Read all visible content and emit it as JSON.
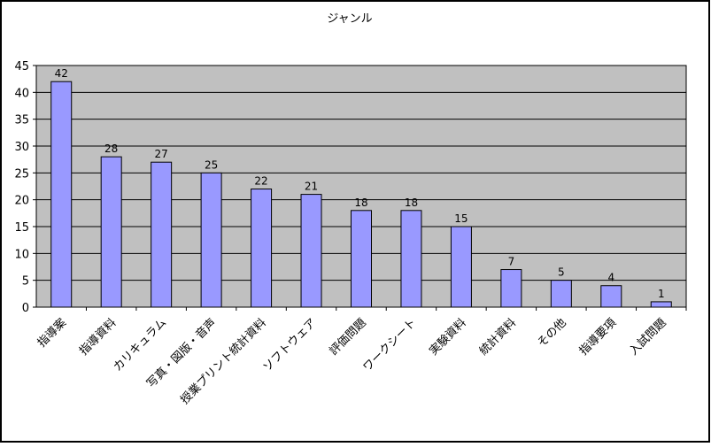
{
  "chart_data": {
    "type": "bar",
    "title": "ジャンル",
    "categories": [
      "指導案",
      "指導資料",
      "カリキュラム",
      "写真・図版・音声",
      "授業プリント統計資料",
      "ソフトウェア",
      "評価問題",
      "ワークシート",
      "実験資料",
      "統計資料",
      "その他",
      "指導要項",
      "入試問題"
    ],
    "values": [
      42,
      28,
      27,
      25,
      22,
      21,
      18,
      18,
      15,
      7,
      5,
      4,
      1
    ],
    "ylim": [
      0,
      45
    ],
    "yticks": [
      0,
      5,
      10,
      15,
      20,
      25,
      30,
      35,
      40,
      45
    ],
    "xlabel": "",
    "ylabel": "",
    "grid": true,
    "legend": "none",
    "colors": {
      "bar_fill": "#9999ff",
      "bar_stroke": "#000000",
      "plot_background": "#c0c0c0",
      "gridline": "#000000",
      "frame_border": "#000000"
    }
  }
}
